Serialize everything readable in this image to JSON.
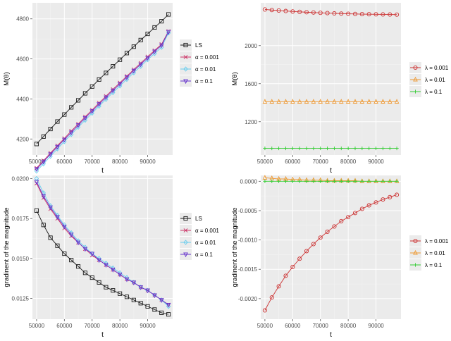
{
  "figure": {
    "panel_labels": [
      "top-left",
      "top-right",
      "bottom-left",
      "bottom-right"
    ]
  },
  "chart_data": [
    {
      "type": "line",
      "title": "",
      "xlabel": "t",
      "ylabel": "M(θ)",
      "xlim": [
        48500,
        99000
      ],
      "ylim": [
        4120,
        4880
      ],
      "xticks": [
        50000,
        60000,
        70000,
        80000,
        90000
      ],
      "yticks": [
        4200,
        4400,
        4600,
        4800
      ],
      "grid": true,
      "legend_position": "right",
      "x": [
        50000,
        52500,
        55000,
        57500,
        60000,
        62500,
        65000,
        67500,
        70000,
        72500,
        75000,
        77500,
        80000,
        82500,
        85000,
        87500,
        90000,
        92500,
        95000,
        97500
      ],
      "series": [
        {
          "name": "LS",
          "color": "#1a1a1a",
          "marker": "square",
          "values": [
            4175,
            4212,
            4250,
            4287,
            4322,
            4358,
            4393,
            4428,
            4462,
            4497,
            4530,
            4563,
            4596,
            4629,
            4661,
            4694,
            4725,
            4757,
            4788,
            4822
          ]
        },
        {
          "name": "α = 0.001",
          "color": "#cc3366",
          "marker": "x",
          "values": [
            4055,
            4092,
            4130,
            4167,
            4203,
            4240,
            4275,
            4311,
            4345,
            4380,
            4414,
            4448,
            4481,
            4514,
            4547,
            4579,
            4611,
            4642,
            4673,
            4738
          ]
        },
        {
          "name": "α = 0.01",
          "color": "#66ccee",
          "marker": "diamond",
          "values": [
            4040,
            4076,
            4114,
            4151,
            4187,
            4223,
            4259,
            4294,
            4329,
            4364,
            4398,
            4432,
            4465,
            4498,
            4531,
            4563,
            4596,
            4627,
            4658,
            4730
          ]
        },
        {
          "name": "α = 0.1",
          "color": "#6633cc",
          "marker": "triangle-down",
          "values": [
            4050,
            4087,
            4124,
            4161,
            4197,
            4233,
            4269,
            4305,
            4339,
            4374,
            4408,
            4442,
            4475,
            4508,
            4541,
            4573,
            4605,
            4637,
            4668,
            4735
          ]
        }
      ]
    },
    {
      "type": "line",
      "title": "",
      "xlabel": "t",
      "ylabel": "M(θ)",
      "xlim": [
        48500,
        99000
      ],
      "ylim": [
        850,
        2450
      ],
      "xticks": [
        50000,
        60000,
        70000,
        80000,
        90000
      ],
      "yticks": [
        1200,
        1600,
        2000
      ],
      "grid": true,
      "legend_position": "right",
      "x": [
        50000,
        52500,
        55000,
        57500,
        60000,
        62500,
        65000,
        67500,
        70000,
        72500,
        75000,
        77500,
        80000,
        82500,
        85000,
        87500,
        90000,
        92500,
        95000,
        97500
      ],
      "series": [
        {
          "name": "λ = 0.001",
          "color": "#cc3333",
          "marker": "circle",
          "values": [
            2380,
            2374,
            2369,
            2364,
            2359,
            2355,
            2351,
            2348,
            2345,
            2342,
            2339,
            2337,
            2335,
            2333,
            2331,
            2330,
            2329,
            2328,
            2327,
            2326
          ]
        },
        {
          "name": "λ = 0.01",
          "color": "#ee9933",
          "marker": "triangle",
          "values": [
            1410,
            1410,
            1410,
            1410,
            1410,
            1410,
            1410,
            1410,
            1410,
            1410,
            1410,
            1410,
            1410,
            1410,
            1410,
            1410,
            1410,
            1410,
            1410,
            1410
          ]
        },
        {
          "name": "λ = 0.1",
          "color": "#33cc33",
          "marker": "plus",
          "values": [
            920,
            920,
            920,
            920,
            920,
            920,
            920,
            920,
            920,
            920,
            920,
            920,
            920,
            920,
            920,
            920,
            920,
            920,
            920,
            920
          ]
        }
      ]
    },
    {
      "type": "line",
      "title": "",
      "xlabel": "t",
      "ylabel": "gradinent of the magnitude",
      "xlim": [
        48500,
        99000
      ],
      "ylim": [
        0.0112,
        0.0202
      ],
      "xticks": [
        50000,
        60000,
        70000,
        80000,
        90000
      ],
      "yticks": [
        0.0125,
        0.015,
        0.0175,
        0.02
      ],
      "ytick_labels": [
        "0.0125",
        "0.0150",
        "0.0175",
        "0.0200"
      ],
      "grid": true,
      "legend_position": "right",
      "x": [
        50000,
        52500,
        55000,
        57500,
        60000,
        62500,
        65000,
        67500,
        70000,
        72500,
        75000,
        77500,
        80000,
        82500,
        85000,
        87500,
        90000,
        92500,
        95000,
        97500
      ],
      "series": [
        {
          "name": "LS",
          "color": "#1a1a1a",
          "marker": "square",
          "values": [
            0.018,
            0.0171,
            0.0163,
            0.0158,
            0.0153,
            0.0149,
            0.0145,
            0.0141,
            0.0138,
            0.0135,
            0.0132,
            0.013,
            0.0128,
            0.0126,
            0.0124,
            0.0122,
            0.012,
            0.0118,
            0.0116,
            0.0115
          ]
        },
        {
          "name": "α = 0.001",
          "color": "#cc3366",
          "marker": "x",
          "values": [
            0.0197,
            0.0188,
            0.0181,
            0.0175,
            0.0169,
            0.0164,
            0.016,
            0.0156,
            0.0152,
            0.0149,
            0.0146,
            0.0143,
            0.014,
            0.0137,
            0.0135,
            0.0132,
            0.013,
            0.0127,
            0.0124,
            0.0121
          ]
        },
        {
          "name": "α = 0.01",
          "color": "#66ccee",
          "marker": "diamond",
          "values": [
            0.02,
            0.0191,
            0.0183,
            0.0177,
            0.0171,
            0.0166,
            0.0161,
            0.0157,
            0.0153,
            0.015,
            0.0147,
            0.0144,
            0.0141,
            0.0138,
            0.0135,
            0.0132,
            0.013,
            0.0127,
            0.0124,
            0.012
          ]
        },
        {
          "name": "α = 0.1",
          "color": "#6633cc",
          "marker": "triangle-down",
          "values": [
            0.0198,
            0.0189,
            0.0182,
            0.0176,
            0.017,
            0.0165,
            0.016,
            0.0156,
            0.0153,
            0.0149,
            0.0146,
            0.0143,
            0.014,
            0.0137,
            0.0135,
            0.0132,
            0.013,
            0.0127,
            0.0124,
            0.0121
          ]
        }
      ]
    },
    {
      "type": "line",
      "title": "",
      "xlabel": "t",
      "ylabel": "gradinent of the magnitude",
      "xlim": [
        48500,
        99000
      ],
      "ylim": [
        -0.00235,
        0.0001
      ],
      "xticks": [
        50000,
        60000,
        70000,
        80000,
        90000
      ],
      "yticks": [
        0.0,
        -0.0005,
        -0.001,
        -0.0015,
        -0.002
      ],
      "ytick_labels": [
        "0.0000",
        "-0.0005",
        "-0.0010",
        "-0.0015",
        "-0.0020"
      ],
      "grid": true,
      "legend_position": "right",
      "x": [
        50000,
        52500,
        55000,
        57500,
        60000,
        62500,
        65000,
        67500,
        70000,
        72500,
        75000,
        77500,
        80000,
        82500,
        85000,
        87500,
        90000,
        92500,
        95000,
        97500
      ],
      "series": [
        {
          "name": "λ = 0.001",
          "color": "#cc3333",
          "marker": "circle",
          "values": [
            -0.0022,
            -0.00198,
            -0.00179,
            -0.00161,
            -0.00146,
            -0.00132,
            -0.00119,
            -0.00107,
            -0.00096,
            -0.00086,
            -0.00077,
            -0.00068,
            -0.00061,
            -0.00054,
            -0.00047,
            -0.00041,
            -0.00036,
            -0.00031,
            -0.00027,
            -0.00023
          ]
        },
        {
          "name": "λ = 0.01",
          "color": "#ee9933",
          "marker": "triangle",
          "values": [
            6e-05,
            5e-05,
            4e-05,
            4e-05,
            3e-05,
            3e-05,
            2e-05,
            2e-05,
            2e-05,
            1e-05,
            1e-05,
            1e-05,
            1e-05,
            1e-05,
            0.0,
            0.0,
            0.0,
            0.0,
            0.0,
            0.0
          ]
        },
        {
          "name": "λ = 0.1",
          "color": "#33cc33",
          "marker": "plus",
          "values": [
            0.0,
            0.0,
            0.0,
            0.0,
            0.0,
            0.0,
            0.0,
            0.0,
            0.0,
            0.0,
            0.0,
            0.0,
            0.0,
            0.0,
            0.0,
            0.0,
            0.0,
            0.0,
            0.0,
            0.0
          ]
        }
      ]
    }
  ]
}
